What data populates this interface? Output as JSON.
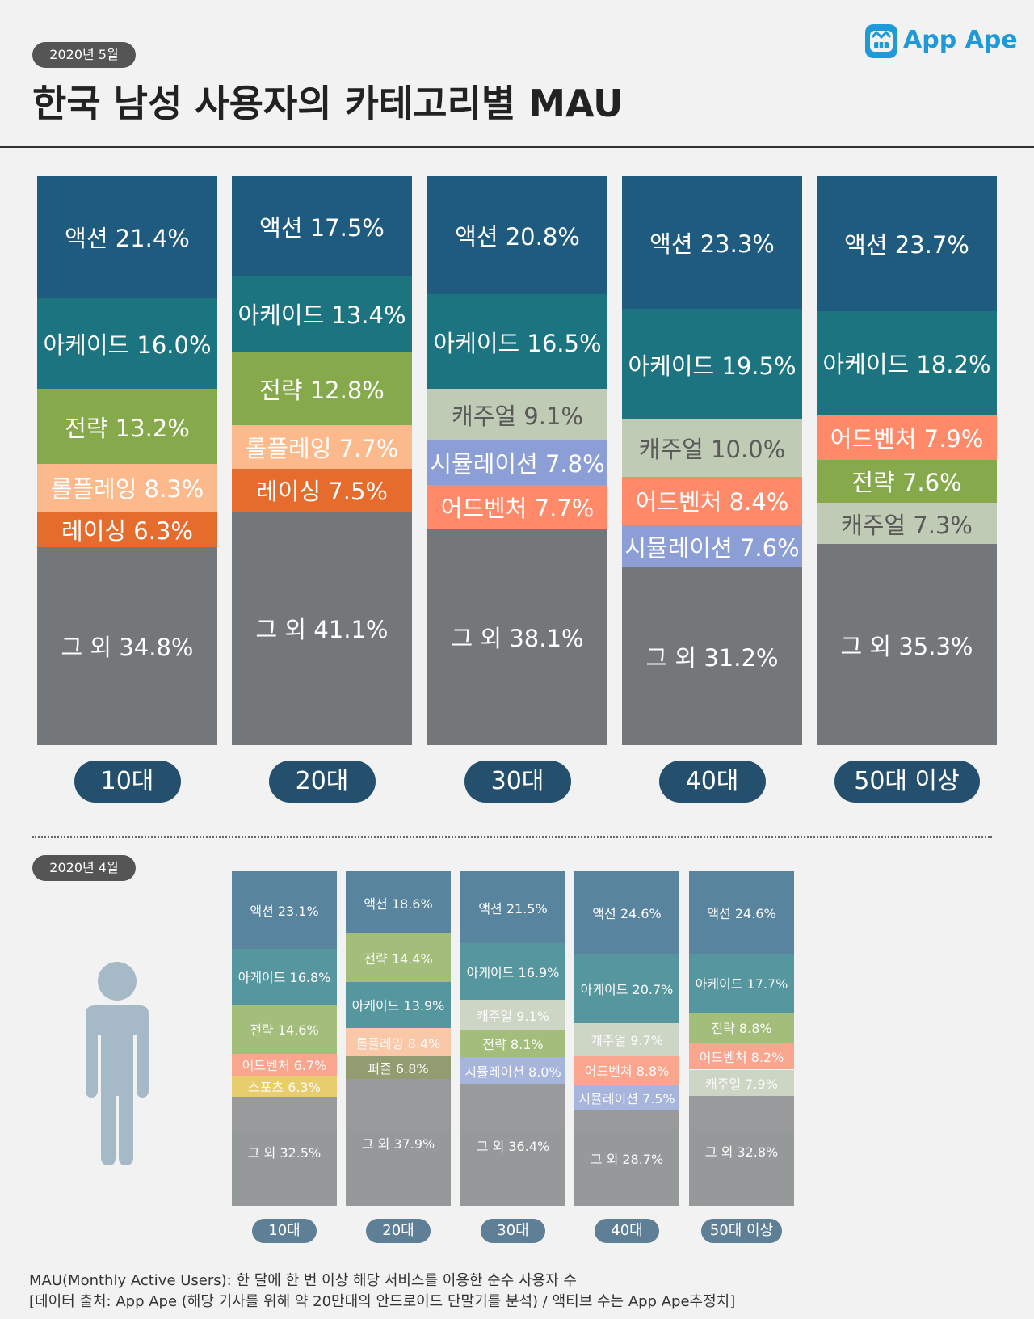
{
  "header": {
    "date_badge": "2020년 5월",
    "title": "한국 남성 사용자의 카테고리별 MAU",
    "logo_text": "App Ape"
  },
  "colors": {
    "action": "#1f5a7f",
    "arcade": "#1b7480",
    "strategy": "#86a94c",
    "roleplaying": "#fbb98c",
    "racing": "#e66c2e",
    "casual": "#bfcbb4",
    "simulation": "#8b9ed5",
    "adventure": "#fe8a6a",
    "sports": "#e4bf3a",
    "puzzle": "#6f7b40",
    "other": "#747779",
    "age_pill": "#24506e",
    "age_pill_prev": "#5e7f95",
    "person_icon": "#a6b9c6"
  },
  "chart_data": [
    {
      "type": "bar",
      "stacked": true,
      "normalized": true,
      "period": "2020년 5월",
      "categories": [
        "10대",
        "20대",
        "30대",
        "40대",
        "50대 이상"
      ],
      "bars": [
        {
          "age": "10대",
          "segments": [
            {
              "name": "액션",
              "value": 21.4,
              "label": "액션 21.4%",
              "color": "action"
            },
            {
              "name": "아케이드",
              "value": 16.0,
              "label": "아케이드 16.0%",
              "color": "arcade"
            },
            {
              "name": "전략",
              "value": 13.2,
              "label": "전략 13.2%",
              "color": "strategy"
            },
            {
              "name": "롤플레잉",
              "value": 8.3,
              "label": "롤플레잉 8.3%",
              "color": "roleplaying"
            },
            {
              "name": "레이싱",
              "value": 6.3,
              "label": "레이싱 6.3%",
              "color": "racing"
            },
            {
              "name": "그 외",
              "value": 34.8,
              "label": "그 외 34.8%",
              "color": "other"
            }
          ]
        },
        {
          "age": "20대",
          "segments": [
            {
              "name": "액션",
              "value": 17.5,
              "label": "액션 17.5%",
              "color": "action"
            },
            {
              "name": "아케이드",
              "value": 13.4,
              "label": "아케이드 13.4%",
              "color": "arcade"
            },
            {
              "name": "전략",
              "value": 12.8,
              "label": "전략 12.8%",
              "color": "strategy"
            },
            {
              "name": "롤플레잉",
              "value": 7.7,
              "label": "롤플레잉 7.7%",
              "color": "roleplaying"
            },
            {
              "name": "레이싱",
              "value": 7.5,
              "label": "레이싱 7.5%",
              "color": "racing"
            },
            {
              "name": "그 외",
              "value": 41.1,
              "label": "그 외 41.1%",
              "color": "other"
            }
          ]
        },
        {
          "age": "30대",
          "segments": [
            {
              "name": "액션",
              "value": 20.8,
              "label": "액션 20.8%",
              "color": "action"
            },
            {
              "name": "아케이드",
              "value": 16.5,
              "label": "아케이드 16.5%",
              "color": "arcade"
            },
            {
              "name": "캐주얼",
              "value": 9.1,
              "label": "캐주얼 9.1%",
              "color": "casual"
            },
            {
              "name": "시뮬레이션",
              "value": 7.8,
              "label": "시뮬레이션 7.8%",
              "color": "simulation"
            },
            {
              "name": "어드벤처",
              "value": 7.7,
              "label": "어드벤처 7.7%",
              "color": "adventure"
            },
            {
              "name": "그 외",
              "value": 38.1,
              "label": "그 외 38.1%",
              "color": "other"
            }
          ]
        },
        {
          "age": "40대",
          "segments": [
            {
              "name": "액션",
              "value": 23.3,
              "label": "액션 23.3%",
              "color": "action"
            },
            {
              "name": "아케이드",
              "value": 19.5,
              "label": "아케이드 19.5%",
              "color": "arcade"
            },
            {
              "name": "캐주얼",
              "value": 10.0,
              "label": "캐주얼 10.0%",
              "color": "casual"
            },
            {
              "name": "어드벤처",
              "value": 8.4,
              "label": "어드벤처 8.4%",
              "color": "adventure"
            },
            {
              "name": "시뮬레이션",
              "value": 7.6,
              "label": "시뮬레이션 7.6%",
              "color": "simulation"
            },
            {
              "name": "그 외",
              "value": 31.2,
              "label": "그 외 31.2%",
              "color": "other"
            }
          ]
        },
        {
          "age": "50대 이상",
          "segments": [
            {
              "name": "액션",
              "value": 23.7,
              "label": "액션 23.7%",
              "color": "action"
            },
            {
              "name": "아케이드",
              "value": 18.2,
              "label": "아케이드 18.2%",
              "color": "arcade"
            },
            {
              "name": "어드벤처",
              "value": 7.9,
              "label": "어드벤처 7.9%",
              "color": "adventure"
            },
            {
              "name": "전략",
              "value": 7.6,
              "label": "전략 7.6%",
              "color": "strategy"
            },
            {
              "name": "캐주얼",
              "value": 7.3,
              "label": "캐주얼 7.3%",
              "color": "casual"
            },
            {
              "name": "그 외",
              "value": 35.3,
              "label": "그 외 35.3%",
              "color": "other"
            }
          ]
        }
      ]
    },
    {
      "type": "bar",
      "stacked": true,
      "normalized": true,
      "period": "2020년 4월",
      "categories": [
        "10대",
        "20대",
        "30대",
        "40대",
        "50대 이상"
      ],
      "bars": [
        {
          "age": "10대",
          "segments": [
            {
              "name": "액션",
              "value": 23.1,
              "label": "액션 23.1%",
              "color": "action"
            },
            {
              "name": "아케이드",
              "value": 16.8,
              "label": "아케이드 16.8%",
              "color": "arcade"
            },
            {
              "name": "전략",
              "value": 14.6,
              "label": "전략 14.6%",
              "color": "strategy"
            },
            {
              "name": "어드벤처",
              "value": 6.7,
              "label": "어드벤처 6.7%",
              "color": "adventure"
            },
            {
              "name": "스포츠",
              "value": 6.3,
              "label": "스포츠 6.3%",
              "color": "sports"
            },
            {
              "name": "그 외",
              "value": 32.5,
              "label": "그 외 32.5%",
              "color": "other"
            }
          ]
        },
        {
          "age": "20대",
          "segments": [
            {
              "name": "액션",
              "value": 18.6,
              "label": "액션 18.6%",
              "color": "action"
            },
            {
              "name": "전략",
              "value": 14.4,
              "label": "전략 14.4%",
              "color": "strategy"
            },
            {
              "name": "아케이드",
              "value": 13.9,
              "label": "아케이드 13.9%",
              "color": "arcade"
            },
            {
              "name": "롤플레잉",
              "value": 8.4,
              "label": "롤플레잉 8.4%",
              "color": "roleplaying"
            },
            {
              "name": "퍼즐",
              "value": 6.8,
              "label": "퍼즐 6.8%",
              "color": "puzzle"
            },
            {
              "name": "그 외",
              "value": 37.9,
              "label": "그 외 37.9%",
              "color": "other"
            }
          ]
        },
        {
          "age": "30대",
          "segments": [
            {
              "name": "액션",
              "value": 21.5,
              "label": "액션 21.5%",
              "color": "action"
            },
            {
              "name": "아케이드",
              "value": 16.9,
              "label": "아케이드 16.9%",
              "color": "arcade"
            },
            {
              "name": "캐주얼",
              "value": 9.1,
              "label": "캐주얼 9.1%",
              "color": "casual"
            },
            {
              "name": "전략",
              "value": 8.1,
              "label": "전략 8.1%",
              "color": "strategy"
            },
            {
              "name": "시뮬레이션",
              "value": 8.0,
              "label": "시뮬레이션 8.0%",
              "color": "simulation"
            },
            {
              "name": "그 외",
              "value": 36.4,
              "label": "그 외 36.4%",
              "color": "other"
            }
          ]
        },
        {
          "age": "40대",
          "segments": [
            {
              "name": "액션",
              "value": 24.6,
              "label": "액션 24.6%",
              "color": "action"
            },
            {
              "name": "아케이드",
              "value": 20.7,
              "label": "아케이드 20.7%",
              "color": "arcade"
            },
            {
              "name": "캐주얼",
              "value": 9.7,
              "label": "캐주얼 9.7%",
              "color": "casual"
            },
            {
              "name": "어드벤처",
              "value": 8.8,
              "label": "어드벤처 8.8%",
              "color": "adventure"
            },
            {
              "name": "시뮬레이션",
              "value": 7.5,
              "label": "시뮬레이션 7.5%",
              "color": "simulation"
            },
            {
              "name": "그 외",
              "value": 28.7,
              "label": "그 외 28.7%",
              "color": "other"
            }
          ]
        },
        {
          "age": "50대 이상",
          "segments": [
            {
              "name": "액션",
              "value": 24.6,
              "label": "액션 24.6%",
              "color": "action"
            },
            {
              "name": "아케이드",
              "value": 17.7,
              "label": "아케이드 17.7%",
              "color": "arcade"
            },
            {
              "name": "전략",
              "value": 8.8,
              "label": "전략 8.8%",
              "color": "strategy"
            },
            {
              "name": "어드벤처",
              "value": 8.2,
              "label": "어드벤처 8.2%",
              "color": "adventure"
            },
            {
              "name": "캐주얼",
              "value": 7.9,
              "label": "캐주얼 7.9%",
              "color": "casual"
            },
            {
              "name": "그 외",
              "value": 32.8,
              "label": "그 외 32.8%",
              "color": "other"
            }
          ]
        }
      ]
    }
  ],
  "prev_section": {
    "date_badge": "2020년 4월"
  },
  "footer": {
    "line1": "MAU(Monthly Active Users):  한 달에 한 번 이상 해당 서비스를 이용한 순수 사용자 수",
    "line2": "[데이터 출처: App Ape (해당 기사를 위해 약 20만대의 안드로이드 단말기를 분석) / 액티브 수는 App Ape추정치]"
  }
}
